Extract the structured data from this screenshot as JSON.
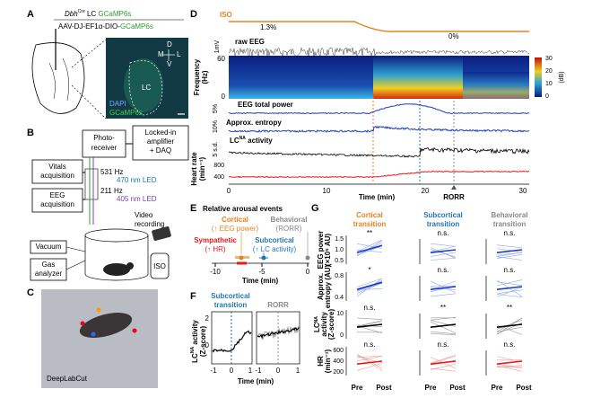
{
  "a": {
    "letter": "A",
    "title": {
      "gene": "Dbh",
      "sup": "Cre",
      "region": " LC ",
      "sensor": "GCaMP6s"
    },
    "virus": {
      "vector": "AAV-DJ-EF1α-DIO-",
      "sensor": "GCaMP6s"
    },
    "image": {
      "d": "D",
      "v": "V",
      "m": "M",
      "l": "L",
      "lc": "LC",
      "dapi": "DAPI",
      "gcamp": "GCaMP6s"
    }
  },
  "b": {
    "letter": "B",
    "photoreceiver": [
      "Photo-",
      "receiver"
    ],
    "amplifier": [
      "Locked-in",
      "amplifier",
      "+ DAQ"
    ],
    "vitals": [
      "Vitals",
      "acquisition"
    ],
    "eeg": [
      "EEG",
      "acquisition"
    ],
    "freq1": "531 Hz",
    "led1": "470 nm LED",
    "freq2": "211 Hz",
    "led2": "405 nm LED",
    "video": [
      "Video",
      "recording"
    ],
    "vacuum": "Vacuum",
    "gas": [
      "Gas",
      "analyzer"
    ],
    "iso": "ISO"
  },
  "c": {
    "letter": "C",
    "label": "DeepLabCut"
  },
  "d": {
    "letter": "D",
    "iso": "ISO",
    "iso_high": "1.3%",
    "iso_low": "0%",
    "eeg_scale": "1mV",
    "eeg": "raw EEG",
    "freq_axis": [
      "Frequency",
      "(Hz)"
    ],
    "freq_ticks": [
      "60",
      "0"
    ],
    "colorbar_ticks": [
      "30",
      "20",
      "10",
      "0"
    ],
    "colorbar_unit": "(dB)",
    "power": "EEG total power",
    "power_scale": "5%",
    "entropy": "Approx. entropy",
    "entropy_scale": "10%",
    "lc": {
      "base": "LC",
      "sup": "NA",
      "rest": " activity"
    },
    "lc_scale": "5 s.d.",
    "hr_axis": [
      "Heart rate",
      "(min⁻¹)"
    ],
    "hr_ticks": [
      "800",
      "400"
    ],
    "x_ticks": [
      "0",
      "10",
      "20",
      "30"
    ],
    "x_label": "Time (min)",
    "rorr": "RORR"
  },
  "e": {
    "letter": "E",
    "title": "Relative arousal events",
    "cortical": [
      "Cortical",
      "(↑ EEG power)"
    ],
    "behavioral": [
      "Behavioral",
      "(RORR)"
    ],
    "sympathetic": [
      "Sympathetic",
      "(↑ HR)"
    ],
    "subcortical": [
      "Subcortical",
      "(↑ LC activity)"
    ],
    "x_ticks": [
      "-10",
      "-5",
      "0"
    ],
    "x_label": "Time (min)"
  },
  "f": {
    "letter": "F",
    "left_title": [
      "Subcortical",
      "transition"
    ],
    "right_title": "RORR",
    "y_label": {
      "base": "LC",
      "sup": "NA",
      "rest": " activity",
      "unit": "(Z-score)"
    },
    "y_ticks": [
      "2",
      "0"
    ],
    "x_ticks": [
      "-1",
      "0",
      "1"
    ],
    "x_label": "Time (min)"
  },
  "g": {
    "letter": "G",
    "columns": [
      [
        "Cortical",
        "transition"
      ],
      [
        "Subcortical",
        "transition"
      ],
      [
        "Behavioral",
        "transition"
      ]
    ],
    "rows": [
      {
        "label": [
          "EEG power",
          "(×10⁵ AU)"
        ],
        "ticks": [
          "1.5",
          "1.0",
          "0.5"
        ],
        "sig": [
          "**",
          "n.s.",
          "n.s."
        ]
      },
      {
        "label": [
          "Approx.",
          "entropy (AU)"
        ],
        "ticks": [
          "0.8",
          "0.4"
        ],
        "sig": [
          "*",
          "n.s.",
          "n.s."
        ]
      },
      {
        "label": [
          "LCᴺᴬ",
          "activity",
          "(Z-score)"
        ],
        "ticks": [
          "10",
          "0"
        ],
        "sig": [
          "n.s.",
          "**",
          "**"
        ]
      },
      {
        "label": [
          "HR",
          "(min⁻¹)"
        ],
        "ticks": [
          "600",
          "400",
          "200"
        ],
        "sig": [
          "n.s.",
          "n.s.",
          "n.s."
        ]
      }
    ],
    "pre": "Pre",
    "post": "Post"
  }
}
